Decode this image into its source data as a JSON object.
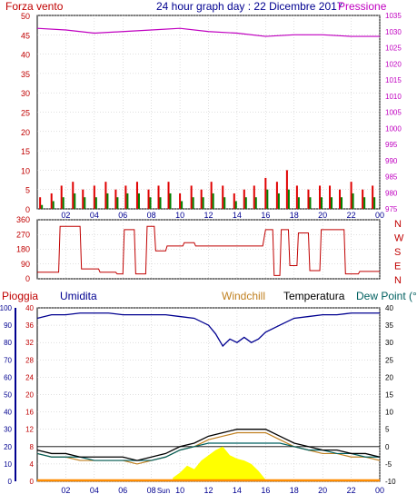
{
  "header": {
    "left_label": "Forza vento",
    "title": "24 hour graph day : 22 Dicembre 2017",
    "right_label": "Pressione"
  },
  "legend_bottom": {
    "pioggia": "Pioggia",
    "umidita": "Umidita",
    "windchill": "Windchill",
    "temperatura": "Temperatura",
    "dew_point": "Dew Point (°C",
    "sun": "Sun"
  },
  "colors": {
    "wind_gust": "#e00000",
    "wind_avg": "#008000",
    "wind_dir": "#c00000",
    "pressure": "#c000c0",
    "humidity": "#000090",
    "temperature": "#000000",
    "windchill": "#c08020",
    "dew_point": "#006060",
    "sun": "#ffff00",
    "rain": "#ff8c00",
    "axis_left": "#c00000",
    "axis_right_top": "#c000c0",
    "axis_left_bottom": "#000090",
    "grid": "#c0c0c0"
  },
  "chart_data": [
    {
      "type": "bar",
      "panel": "wind",
      "x_label": "",
      "x_ticks": [
        "02",
        "04",
        "06",
        "08",
        "10",
        "12",
        "14",
        "16",
        "18",
        "20",
        "22",
        "00"
      ],
      "y_left_ticks": [
        "0",
        "5",
        "10",
        "15",
        "20",
        "25",
        "30",
        "35",
        "40",
        "45",
        "50"
      ],
      "ylim_left": [
        0,
        50
      ],
      "y_right_ticks": [
        "975",
        "980",
        "985",
        "990",
        "995",
        "1000",
        "1005",
        "1010",
        "1015",
        "1020",
        "1025",
        "1030",
        "1035"
      ],
      "ylim_right": [
        975,
        1035
      ],
      "grid": true,
      "series": [
        {
          "name": "Forza vento",
          "hours": [
            0.2,
            1.0,
            1.7,
            2.5,
            3.2,
            4.0,
            4.8,
            5.5,
            6.2,
            7.0,
            7.8,
            8.5,
            9.2,
            10.0,
            10.8,
            11.5,
            12.2,
            13.0,
            13.8,
            14.5,
            15.2,
            16.0,
            16.8,
            17.5,
            18.2,
            19.0,
            19.8,
            20.5,
            21.2,
            22.0,
            22.8,
            23.5
          ],
          "values": [
            3,
            4,
            6,
            7,
            5,
            6,
            7,
            5,
            6,
            7,
            5,
            6,
            7,
            4,
            6,
            5,
            7,
            6,
            4,
            5,
            6,
            8,
            7,
            10,
            6,
            5,
            6,
            6,
            5,
            7,
            5,
            6
          ]
        },
        {
          "name": "",
          "hours": [
            0.2,
            1.0,
            1.7,
            2.5,
            3.2,
            4.0,
            4.8,
            5.5,
            6.2,
            7.0,
            7.8,
            8.5,
            9.2,
            10.0,
            10.8,
            11.5,
            12.2,
            13.0,
            13.8,
            14.5,
            15.2,
            16.0,
            16.8,
            17.5,
            18.2,
            19.0,
            19.8,
            20.5,
            21.2,
            22.0,
            22.8,
            23.5
          ],
          "values": [
            1,
            2,
            3,
            4,
            3,
            3,
            4,
            3,
            4,
            4,
            3,
            3,
            4,
            2,
            3,
            3,
            4,
            3,
            2,
            3,
            3,
            5,
            4,
            5,
            3,
            3,
            3,
            3,
            3,
            4,
            3,
            3
          ]
        }
      ]
    },
    {
      "type": "line",
      "panel": "pressure",
      "series": [
        {
          "name": "Pressione",
          "hours": [
            0,
            2,
            4,
            6,
            8,
            10,
            12,
            14,
            16,
            18,
            20,
            22,
            24
          ],
          "values": [
            1031,
            1030.5,
            1029.5,
            1030,
            1030.5,
            1031,
            1030,
            1029.5,
            1028.5,
            1029,
            1029,
            1028.5,
            1028.5
          ]
        }
      ]
    },
    {
      "type": "line",
      "panel": "wind_direction",
      "y_ticks": [
        "0",
        "90",
        "180",
        "270",
        "360"
      ],
      "ylim": [
        0,
        360
      ],
      "compass_labels": [
        "N",
        "W",
        "S",
        "E",
        "N"
      ],
      "series": [
        {
          "name": "",
          "hours": [
            0,
            1.5,
            1.6,
            3.0,
            3.1,
            4.3,
            4.4,
            5.5,
            5.6,
            6.0,
            6.1,
            6.8,
            6.9,
            7.6,
            7.7,
            8.2,
            8.3,
            9.0,
            9.1,
            10.2,
            10.3,
            11.0,
            11.1,
            12.8,
            12.9,
            15.8,
            16.0,
            16.5,
            16.6,
            17.0,
            17.1,
            17.6,
            17.7,
            18.2,
            18.3,
            19.0,
            19.1,
            19.8,
            19.9,
            21.5,
            21.6,
            22.5,
            22.6,
            24
          ],
          "values": [
            40,
            40,
            320,
            320,
            60,
            60,
            40,
            40,
            30,
            30,
            300,
            300,
            30,
            30,
            320,
            320,
            170,
            170,
            200,
            200,
            220,
            220,
            200,
            200,
            200,
            200,
            300,
            300,
            20,
            20,
            300,
            300,
            80,
            80,
            280,
            280,
            50,
            50,
            300,
            300,
            30,
            30,
            45,
            45
          ]
        }
      ]
    },
    {
      "type": "line",
      "panel": "temperature_humidity",
      "y_left_ticks": [
        "0",
        "10",
        "20",
        "30",
        "40",
        "50",
        "60",
        "70",
        "80",
        "90",
        "100"
      ],
      "ylim_left": [
        0,
        100
      ],
      "y_right_ticks": [
        "-10",
        "-5",
        "0",
        "5",
        "10",
        "15",
        "20",
        "25",
        "30",
        "35",
        "40"
      ],
      "ylim_right": [
        -10,
        40
      ],
      "sunrise_label": "Sun",
      "series": [
        {
          "name": "Umidita",
          "hours": [
            0,
            1,
            2,
            3,
            4,
            5,
            6,
            7,
            8,
            9,
            10,
            11,
            12,
            12.5,
            13,
            13.5,
            14,
            14.5,
            15,
            15.5,
            16,
            17,
            18,
            19,
            20,
            21,
            22,
            23,
            24
          ],
          "values": [
            94,
            96,
            96,
            97,
            97,
            97,
            96,
            96,
            96,
            96,
            95,
            94,
            90,
            85,
            78,
            82,
            80,
            83,
            80,
            82,
            86,
            90,
            94,
            95,
            96,
            96,
            97,
            97,
            97
          ]
        },
        {
          "name": "Temperatura",
          "hours": [
            0,
            1,
            2,
            3,
            4,
            5,
            6,
            7,
            8,
            9,
            10,
            11,
            12,
            13,
            14,
            15,
            16,
            17,
            18,
            19,
            20,
            21,
            22,
            23,
            24
          ],
          "values": [
            -1,
            -2,
            -2,
            -3,
            -3,
            -3,
            -3,
            -4,
            -3,
            -2,
            0,
            1,
            3,
            4,
            5,
            5,
            5,
            3,
            1,
            0,
            -1,
            -1,
            -2,
            -2,
            -3
          ]
        },
        {
          "name": "Windchill",
          "hours": [
            0,
            1,
            2,
            3,
            4,
            5,
            6,
            7,
            8,
            9,
            10,
            11,
            12,
            13,
            14,
            15,
            16,
            17,
            18,
            19,
            20,
            21,
            22,
            23,
            24
          ],
          "values": [
            -2,
            -3,
            -3,
            -4,
            -4,
            -4,
            -4,
            -5,
            -4,
            -3,
            -1,
            0,
            2,
            3,
            4,
            4,
            4,
            2,
            0,
            -1,
            -2,
            -2,
            -3,
            -3,
            -4
          ]
        },
        {
          "name": "Dew Point",
          "hours": [
            0,
            1,
            2,
            3,
            4,
            5,
            6,
            7,
            8,
            9,
            10,
            11,
            12,
            13,
            14,
            15,
            16,
            17,
            18,
            19,
            20,
            21,
            22,
            23,
            24
          ],
          "values": [
            -2,
            -3,
            -3,
            -3,
            -4,
            -4,
            -4,
            -4,
            -4,
            -3,
            -1,
            0,
            1,
            1,
            1,
            1,
            1,
            1,
            0,
            -1,
            -1,
            -2,
            -2,
            -3,
            -3
          ]
        },
        {
          "name": "Sun",
          "hours": [
            9.5,
            10,
            10.5,
            11,
            11.5,
            12,
            12.5,
            13,
            13.5,
            14,
            14.5,
            15,
            15.5,
            16
          ],
          "values": [
            2,
            5,
            9,
            7,
            12,
            15,
            18,
            20,
            15,
            13,
            12,
            10,
            6,
            1
          ]
        },
        {
          "name": "Pioggia",
          "hours": [
            0,
            24
          ],
          "values": [
            0,
            0
          ]
        }
      ]
    }
  ]
}
